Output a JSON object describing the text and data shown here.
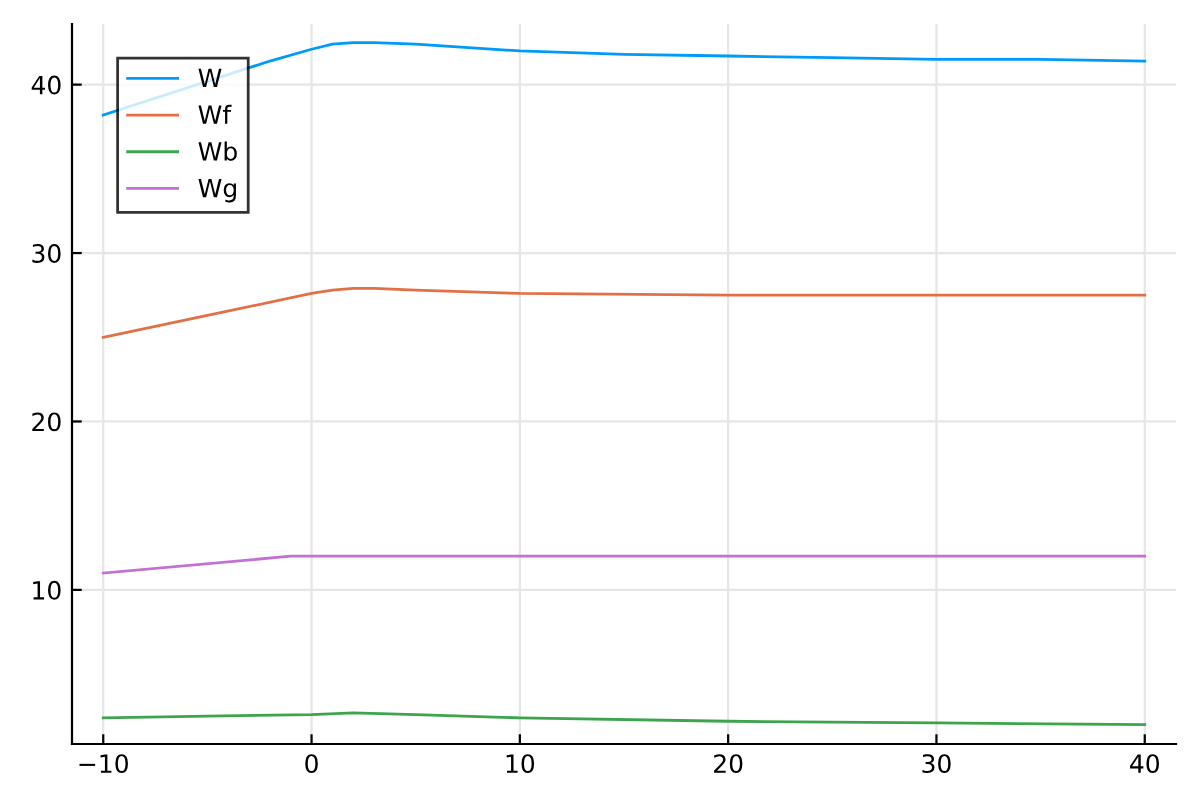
{
  "chart_data": {
    "type": "line",
    "xlim": [
      -11.5,
      41.5
    ],
    "ylim": [
      0.85,
      43.6
    ],
    "xticks": [
      -10,
      0,
      10,
      20,
      30,
      40
    ],
    "yticks": [
      10,
      20,
      30,
      40
    ],
    "grid": true,
    "legend": "top left",
    "series": [
      {
        "name": "W",
        "color": "#009af9",
        "x": [
          -10,
          -2,
          0,
          1,
          2,
          3,
          5,
          10,
          15,
          20,
          25,
          30,
          35,
          40
        ],
        "values": [
          38.2,
          41.4,
          42.1,
          42.4,
          42.5,
          42.5,
          42.4,
          42.0,
          41.8,
          41.7,
          41.6,
          41.5,
          41.5,
          41.4
        ]
      },
      {
        "name": "Wf",
        "color": "#e26f46",
        "x": [
          -10,
          -5,
          0,
          1,
          2,
          3,
          5,
          10,
          20,
          30,
          40
        ],
        "values": [
          25.0,
          26.3,
          27.6,
          27.8,
          27.9,
          27.9,
          27.8,
          27.6,
          27.5,
          27.5,
          27.5
        ]
      },
      {
        "name": "Wb",
        "color": "#3da44d",
        "x": [
          -10,
          -5,
          0,
          2,
          5,
          10,
          20,
          30,
          40
        ],
        "values": [
          2.4,
          2.5,
          2.6,
          2.7,
          2.6,
          2.4,
          2.2,
          2.1,
          2.0
        ]
      },
      {
        "name": "Wg",
        "color": "#c271d2",
        "x": [
          -10,
          -1,
          10,
          20,
          30,
          40
        ],
        "values": [
          11.0,
          12.0,
          12.0,
          12.0,
          12.0,
          12.0
        ]
      }
    ]
  }
}
